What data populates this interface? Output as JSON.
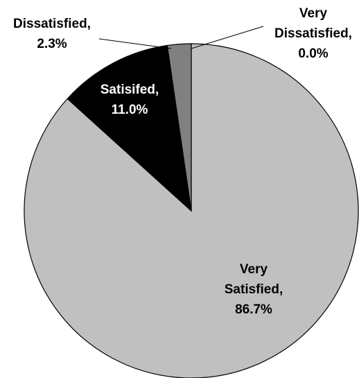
{
  "chart_data": {
    "type": "pie",
    "title": "",
    "start": "12 o'clock",
    "direction": "clockwise",
    "slices": [
      {
        "label_lines": [
          "Very",
          "Satisfied,",
          "86.7%"
        ],
        "category": "Very Satisfied",
        "value": 86.7,
        "color": "#c0c0c0",
        "text_color": "#000000"
      },
      {
        "label_lines": [
          "Satisifed,",
          "11.0%"
        ],
        "category": "Satisifed",
        "value": 11.0,
        "color": "#000000",
        "text_color": "#ffffff"
      },
      {
        "label_lines": [
          "Dissatisfied,",
          "2.3%"
        ],
        "category": "Dissatisfied",
        "value": 2.3,
        "color": "#808080",
        "text_color": "#000000"
      },
      {
        "label_lines": [
          "Very",
          "Dissatisfied,",
          "0.0%"
        ],
        "category": "Very Dissatisfied",
        "value": 0.0,
        "color": "#ffffff",
        "text_color": "#000000"
      }
    ]
  }
}
